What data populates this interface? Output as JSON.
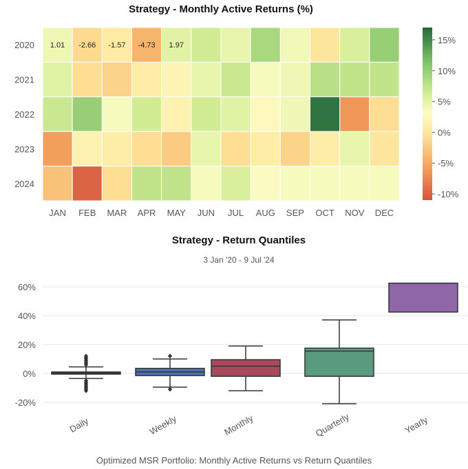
{
  "caption": "Optimized MSR Portfolio: Monthly Active Returns vs Return Quantiles",
  "chart_data": [
    {
      "type": "heatmap",
      "title": "Strategy - Monthly Active Returns (%)",
      "rows": [
        "2020",
        "2021",
        "2022",
        "2023",
        "2024"
      ],
      "columns": [
        "JAN",
        "FEB",
        "MAR",
        "APR",
        "MAY",
        "JUN",
        "JUL",
        "AUG",
        "SEP",
        "OCT",
        "NOV",
        "DEC"
      ],
      "values": [
        [
          1.01,
          -2.66,
          -1.57,
          -4.73,
          1.97,
          3.0,
          1.5,
          5.5,
          0.8,
          -2.0,
          2.5,
          6.5
        ],
        [
          2.0,
          -2.5,
          -3.0,
          -1.5,
          -0.8,
          1.5,
          3.5,
          0.5,
          1.0,
          4.5,
          4.0,
          4.0
        ],
        [
          3.5,
          6.5,
          0.5,
          3.0,
          -1.0,
          3.0,
          2.0,
          -0.5,
          1.0,
          16.0,
          -6.5,
          -2.5
        ],
        [
          -6.0,
          -1.0,
          -1.5,
          -2.5,
          -3.5,
          1.5,
          -2.5,
          -1.5,
          -3.0,
          -1.5,
          1.5,
          -2.0
        ],
        [
          -4.0,
          -10.0,
          -2.5,
          4.0,
          4.0,
          0.5,
          2.5,
          0.3,
          0.5,
          0.5,
          0.5,
          0.5
        ]
      ],
      "cell_labels": [
        [
          "1.01",
          "-2.66",
          "-1.57",
          "-4.73",
          "1.97",
          "",
          "",
          "",
          "",
          "",
          "",
          ""
        ],
        [
          "",
          "",
          "",
          "",
          "",
          "",
          "",
          "",
          "",
          "",
          "",
          ""
        ],
        [
          "",
          "",
          "",
          "",
          "",
          "",
          "",
          "",
          "",
          "",
          "",
          ""
        ],
        [
          "",
          "",
          "",
          "",
          "",
          "",
          "",
          "",
          "",
          "",
          "",
          ""
        ],
        [
          "",
          "",
          "",
          "",
          "",
          "",
          "",
          "",
          "",
          "",
          "",
          ""
        ]
      ],
      "colorbar": {
        "min": -11,
        "max": 17,
        "ticks": [
          15,
          10,
          5,
          0,
          -5,
          -10
        ],
        "tick_labels": [
          "15%",
          "10%",
          "5%",
          "0%",
          "-5%",
          "-10%"
        ],
        "colormap": "RdYlGn"
      }
    },
    {
      "type": "box",
      "title": "Strategy - Return Quantiles",
      "subtitle": "3 Jan '20 -  9 Jul '24",
      "categories": [
        "Daily",
        "Weekly",
        "Monthly",
        "Quarterly",
        "Yearly"
      ],
      "ylim": [
        -25,
        65
      ],
      "yticks": [
        60,
        40,
        20,
        0,
        -20
      ],
      "ytick_labels": [
        "60%",
        "40%",
        "20%",
        "0%",
        "-20%"
      ],
      "grid": true,
      "boxes": [
        {
          "whisker_low": -3.5,
          "q1": -0.5,
          "median": 0.2,
          "q3": 1.0,
          "whisker_high": 4.5,
          "color": "#4a4a4a",
          "outliers": [
            -12,
            -11,
            -10,
            -9,
            -8,
            -7,
            -6,
            -5,
            6,
            7,
            8,
            9,
            10,
            11,
            12
          ]
        },
        {
          "whisker_low": -9.5,
          "q1": -1.5,
          "median": 1.0,
          "q3": 3.5,
          "whisker_high": 10.0,
          "color": "#4c72b0",
          "outliers": [
            -11,
            12
          ]
        },
        {
          "whisker_low": -12.0,
          "q1": -2.0,
          "median": 5.0,
          "q3": 9.5,
          "whisker_high": 19.0,
          "color": "#a84a5e",
          "outliers": []
        },
        {
          "whisker_low": -21.0,
          "q1": -2.0,
          "median": 15.5,
          "q3": 17.5,
          "whisker_high": 37.0,
          "color": "#5a9a7e",
          "outliers": []
        },
        {
          "whisker_low": null,
          "q1": 42.5,
          "median": null,
          "q3": 62.5,
          "whisker_high": null,
          "color": "#8f67a8",
          "outliers": []
        }
      ]
    }
  ]
}
